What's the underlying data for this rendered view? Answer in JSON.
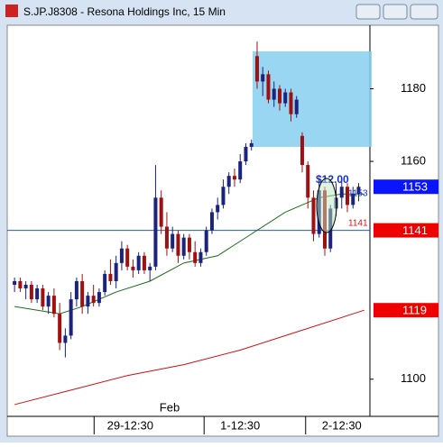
{
  "window_title": "S.JP.J8308 - Resona Holdings Inc, 15 Min",
  "chart_data": {
    "type": "candlestick",
    "up_color": "#1a237e",
    "down_color": "#a01010",
    "open": [
      1126,
      1127,
      1125,
      1126,
      1122,
      1125,
      1120,
      1123,
      1118,
      1110,
      1112,
      1122,
      1127,
      1120,
      1123,
      1121,
      1124,
      1129,
      1127,
      1132,
      1136,
      1131,
      1130,
      1134,
      1130,
      1131,
      1150,
      1142,
      1136,
      1140,
      1134,
      1139,
      1135,
      1132,
      1135,
      1141,
      1146,
      1148,
      1153,
      1156,
      1155,
      1160,
      1164,
      1189,
      1182,
      1184,
      1177,
      1180,
      1176,
      1179,
      1173,
      1167,
      1159,
      1150,
      1140,
      1152,
      1136,
      1147,
      1150,
      1153,
      1148,
      1151
    ],
    "high": [
      1128,
      1128,
      1127,
      1127,
      1126,
      1126,
      1124,
      1125,
      1121,
      1114,
      1124,
      1128,
      1129,
      1124,
      1126,
      1125,
      1130,
      1133,
      1134,
      1138,
      1137,
      1133,
      1135,
      1135,
      1132,
      1159,
      1152,
      1146,
      1142,
      1141,
      1140,
      1140,
      1138,
      1136,
      1142,
      1147,
      1150,
      1155,
      1157,
      1158,
      1162,
      1165,
      1166,
      1193,
      1186,
      1185,
      1182,
      1181,
      1180,
      1180,
      1178,
      1168,
      1160,
      1152,
      1155,
      1153,
      1148,
      1154,
      1155,
      1154,
      1153,
      1154
    ],
    "low": [
      1124,
      1124,
      1122,
      1121,
      1121,
      1119,
      1118,
      1117,
      1108,
      1106,
      1111,
      1120,
      1118,
      1118,
      1120,
      1120,
      1123,
      1126,
      1125,
      1130,
      1130,
      1128,
      1129,
      1129,
      1127,
      1130,
      1140,
      1134,
      1135,
      1132,
      1133,
      1133,
      1131,
      1131,
      1134,
      1140,
      1144,
      1147,
      1151,
      1153,
      1154,
      1159,
      1163,
      1180,
      1178,
      1176,
      1175,
      1174,
      1175,
      1171,
      1172,
      1157,
      1147,
      1138,
      1139,
      1134,
      1135,
      1145,
      1147,
      1146,
      1147,
      1149
    ],
    "close": [
      1127,
      1125,
      1126,
      1122,
      1125,
      1120,
      1123,
      1118,
      1110,
      1112,
      1122,
      1127,
      1120,
      1123,
      1121,
      1124,
      1129,
      1127,
      1132,
      1136,
      1131,
      1130,
      1134,
      1130,
      1131,
      1150,
      1142,
      1136,
      1140,
      1134,
      1139,
      1135,
      1132,
      1135,
      1141,
      1146,
      1148,
      1153,
      1156,
      1155,
      1160,
      1164,
      1165,
      1182,
      1184,
      1177,
      1180,
      1176,
      1179,
      1173,
      1177,
      1159,
      1150,
      1140,
      1152,
      1136,
      1147,
      1150,
      1153,
      1148,
      1151,
      1153
    ],
    "lines": [
      {
        "color": "#1b6e1b",
        "x": [
          0,
          8,
          12,
          18,
          24,
          30,
          36,
          42,
          48,
          54,
          58,
          62
        ],
        "values": [
          1120,
          1118,
          1120,
          1124,
          1127,
          1132,
          1134,
          1140,
          1146,
          1150,
          1151,
          1151
        ]
      },
      {
        "color": "#d01010",
        "x": [
          0,
          10,
          20,
          30,
          40,
          50,
          62
        ],
        "values": [
          1093,
          1097,
          1101,
          1104,
          1108,
          1113,
          1119
        ]
      }
    ],
    "hline": {
      "value": 1141,
      "color": "#1e5bd6"
    },
    "xlim": [
      -1.3,
      63
    ],
    "xticks": [
      {
        "value": 20.5,
        "label": "29-12:30"
      },
      {
        "value": 40,
        "label": "1-12:30"
      },
      {
        "value": 58,
        "label": "2-12:30"
      }
    ],
    "ylim": [
      1091,
      1197
    ],
    "yticks": [
      1100,
      1160,
      1180
    ],
    "price_tags": [
      {
        "value": 1153,
        "color": "#0a14ff"
      },
      {
        "value": 1141,
        "color": "#ee0000"
      },
      {
        "value": 1119,
        "color": "#ee0000"
      }
    ],
    "annotations": [
      "Feb",
      "$12.00",
      "1153",
      "1141"
    ]
  }
}
